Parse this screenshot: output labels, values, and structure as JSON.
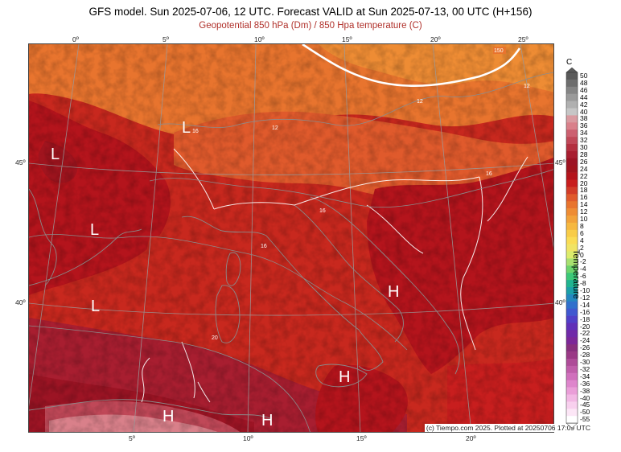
{
  "header": {
    "title": "GFS model. Sun 2025-07-06, 12 UTC. Forecast VALID at Sun 2025-07-13, 00 UTC (H+156)",
    "subtitle": "Geopotential 850 hPa (Dm) / 850 Hpa temperature (C)"
  },
  "map": {
    "top_lon_ticks": [
      "0º",
      "5º",
      "10º",
      "15º",
      "20º",
      "25º"
    ],
    "bottom_lon_ticks": [
      "5º",
      "10º",
      "15º",
      "20º"
    ],
    "left_lat_ticks": [
      "45º",
      "40º"
    ],
    "right_lat_ticks": [
      "45º",
      "40º"
    ],
    "pressure_markers": [
      {
        "label": "L"
      },
      {
        "label": "L"
      },
      {
        "label": "L"
      },
      {
        "label": "L"
      },
      {
        "label": "H"
      },
      {
        "label": "H"
      },
      {
        "label": "H"
      },
      {
        "label": "H"
      }
    ],
    "contour_labels": [
      "150",
      "12",
      "12",
      "12",
      "16",
      "16",
      "16",
      "16",
      "20"
    ],
    "copyright": "(c) Tiempo.com 2025. Plotted at 20250706 17:09 UTC"
  },
  "colorbar": {
    "unit": "C",
    "title": "Temperature",
    "labels": [
      "50",
      "48",
      "46",
      "44",
      "42",
      "40",
      "38",
      "36",
      "34",
      "32",
      "30",
      "28",
      "26",
      "24",
      "22",
      "20",
      "18",
      "16",
      "14",
      "12",
      "10",
      "8",
      "6",
      "4",
      "2",
      "0",
      "-2",
      "-4",
      "-6",
      "-8",
      "-10",
      "-12",
      "-14",
      "-16",
      "-18",
      "-20",
      "-22",
      "-24",
      "-26",
      "-28",
      "-30",
      "-32",
      "-34",
      "-36",
      "-38",
      "-40",
      "-45",
      "-50",
      "-55"
    ],
    "colors": [
      "#5a5a5a",
      "#6e6e6e",
      "#858585",
      "#9a9a9a",
      "#b0b0b0",
      "#c6c6c6",
      "#d99aa0",
      "#d9808a",
      "#cc6070",
      "#c04858",
      "#b43040",
      "#a81e30",
      "#9c1424",
      "#a0141e",
      "#b4141c",
      "#c81e1e",
      "#d23c28",
      "#e05a2c",
      "#e8742e",
      "#ee8c34",
      "#f2a23a",
      "#f6b840",
      "#f8cc48",
      "#fadc54",
      "#f0e464",
      "#dcec6c",
      "#a8e070",
      "#6cd46c",
      "#3cc878",
      "#20b490",
      "#1ca0a8",
      "#2488c0",
      "#3070cc",
      "#4058d0",
      "#5040c8",
      "#6030b8",
      "#702aa8",
      "#7c2898",
      "#88307e",
      "#9a3a86",
      "#ae4c98",
      "#c05eaa",
      "#d070bc",
      "#de86cc",
      "#ea9ed8",
      "#f2b8e4",
      "#f8d0ee",
      "#fce6f6",
      "#ffffff"
    ]
  }
}
